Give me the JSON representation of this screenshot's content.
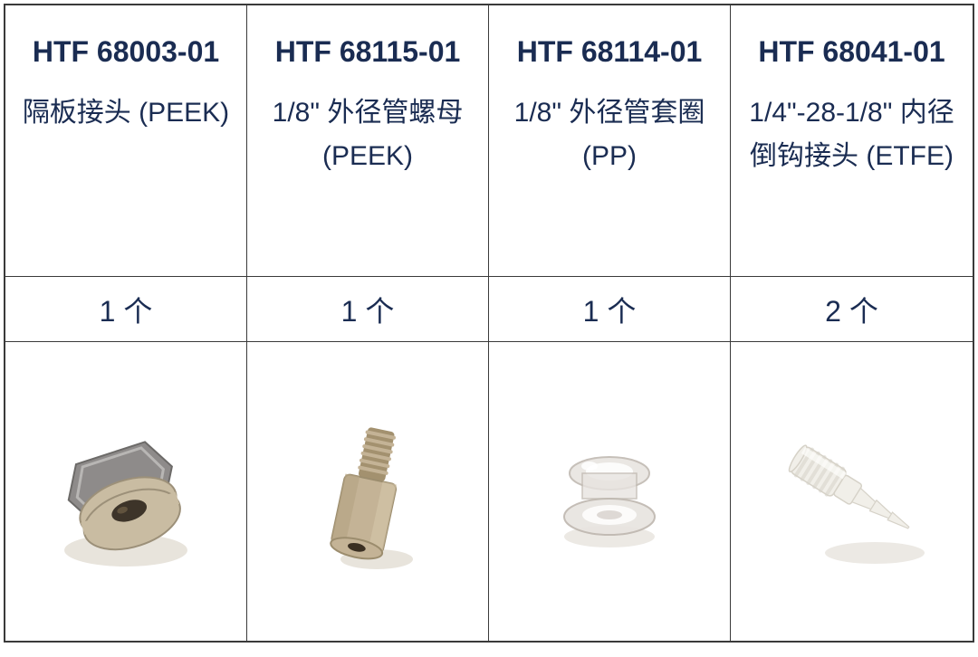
{
  "table": {
    "border_color": "#3a3a3a",
    "text_color": "#1a2c52",
    "columns": [
      {
        "part_number": "HTF 68003-01",
        "description": "隔板接头 (PEEK)",
        "quantity": "1 个",
        "part_colors": {
          "body": "#c9bca2",
          "nut": "#8e8b8a",
          "hole": "#3d3429",
          "shadow": "#e8e4dc"
        }
      },
      {
        "part_number": "HTF 68115-01",
        "description": "1/8\" 外径管螺母 (PEEK)",
        "quantity": "1 个",
        "part_colors": {
          "body": "#c4b396",
          "thread": "#a3916f",
          "hole": "#3a2f22",
          "shadow": "#e8e4dc"
        }
      },
      {
        "part_number": "HTF 68114-01",
        "description": "1/8\" 外径管套圈 (PP)",
        "quantity": "1 个",
        "part_colors": {
          "body": "#e8e4e0",
          "edge": "#bfb8b0",
          "highlight": "#fdfdfc",
          "shadow": "#ece9e4"
        }
      },
      {
        "part_number": "HTF 68041-01",
        "description": "1/4\"-28-1/8\" 内径倒钩接头 (ETFE)",
        "quantity": "2 个",
        "part_colors": {
          "body": "#f1efe9",
          "edge": "#d6d2c8",
          "highlight": "#fdfdfb",
          "shadow": "#ece9e4"
        }
      }
    ]
  }
}
